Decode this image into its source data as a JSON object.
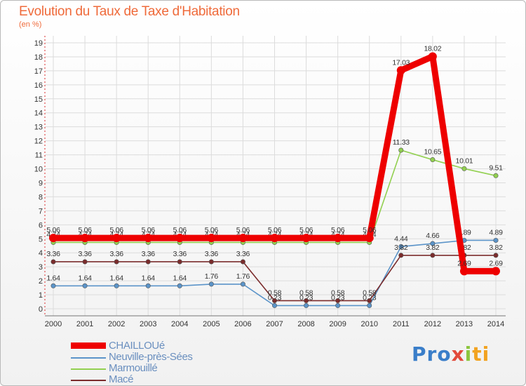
{
  "chart_data": {
    "type": "line",
    "title": "Evolution du Taux de Taxe d'Habitation",
    "ylabel": "(en %)",
    "xlabel": "",
    "x": [
      2000,
      2001,
      2002,
      2003,
      2004,
      2005,
      2006,
      2007,
      2008,
      2009,
      2010,
      2011,
      2012,
      2013,
      2014
    ],
    "categories": [
      "2000",
      "2001",
      "2002",
      "2003",
      "2004",
      "2005",
      "2006",
      "2007",
      "2008",
      "2009",
      "2010",
      "2011",
      "2012",
      "2013",
      "2014"
    ],
    "yticks": [
      "0",
      "1",
      "2",
      "3",
      "4",
      "5",
      "6",
      "7",
      "8",
      "9",
      "10",
      "11",
      "12",
      "13",
      "14",
      "15",
      "16",
      "17",
      "18",
      "19"
    ],
    "ylim": [
      0,
      19
    ],
    "grid": true,
    "legend_position": "bottom-left",
    "series": [
      {
        "name": "Neuville-près-Sées",
        "color": "#5b94c9",
        "marker": true,
        "values": [
          1.64,
          1.64,
          1.64,
          1.64,
          1.64,
          1.76,
          1.76,
          0.23,
          0.23,
          0.23,
          0.23,
          4.44,
          4.66,
          4.89,
          4.89
        ],
        "labels": [
          "1.64",
          "1.64",
          "1.64",
          "1.64",
          "1.64",
          "1.76",
          "1.76",
          "0.23",
          "0.23",
          "0.23",
          "0.23",
          "4.44",
          "4.66",
          "4.89",
          "4.89"
        ]
      },
      {
        "name": "Marmouillé",
        "color": "#92d050",
        "marker": true,
        "values": [
          4.74,
          4.74,
          4.74,
          4.74,
          4.74,
          4.74,
          4.74,
          4.74,
          4.74,
          4.74,
          4.74,
          11.33,
          10.65,
          10.01,
          9.51
        ],
        "labels": [
          "4.74",
          "4.74",
          "4.74",
          "4.74",
          "4.74",
          "4.74",
          "4.74",
          "4.74",
          "4.74",
          "4.74",
          "4.74",
          "11.33",
          "10.65",
          "10.01",
          "9.51"
        ]
      },
      {
        "name": "Macé",
        "color": "#7b2c2c",
        "marker": true,
        "values": [
          3.36,
          3.36,
          3.36,
          3.36,
          3.36,
          3.36,
          3.36,
          0.58,
          0.58,
          0.58,
          0.58,
          3.82,
          3.82,
          3.82,
          3.82
        ],
        "labels": [
          "3.36",
          "3.36",
          "3.36",
          "3.36",
          "3.36",
          "3.36",
          "3.36",
          "0.58",
          "0.58",
          "0.58",
          "0.58",
          "3.82",
          "3.82",
          "3.82",
          "3.82"
        ]
      },
      {
        "name": "CHAILLOUé",
        "color": "#ee0000",
        "thick": true,
        "marker": true,
        "values": [
          5.06,
          5.06,
          5.06,
          5.06,
          5.06,
          5.06,
          5.06,
          5.06,
          5.06,
          5.06,
          5.06,
          17.03,
          18.02,
          2.69,
          2.69
        ],
        "labels": [
          "5.06",
          "5.06",
          "5.06",
          "5.06",
          "5.06",
          "5.06",
          "5.06",
          "5.06",
          "5.06",
          "5.06",
          "5.06",
          "17.03",
          "18.02",
          "2.69",
          "2.69"
        ]
      }
    ]
  },
  "legend": [
    {
      "label": "CHAILLOUé",
      "color": "#ee0000"
    },
    {
      "label": "Neuville-près-Sées",
      "color": "#5b94c9"
    },
    {
      "label": "Marmouillé",
      "color": "#92d050"
    },
    {
      "label": "Macé",
      "color": "#7b2c2c"
    }
  ],
  "brand": {
    "p1": "Pro",
    "p2": "x",
    "p3": "i",
    "p4": "ti"
  }
}
